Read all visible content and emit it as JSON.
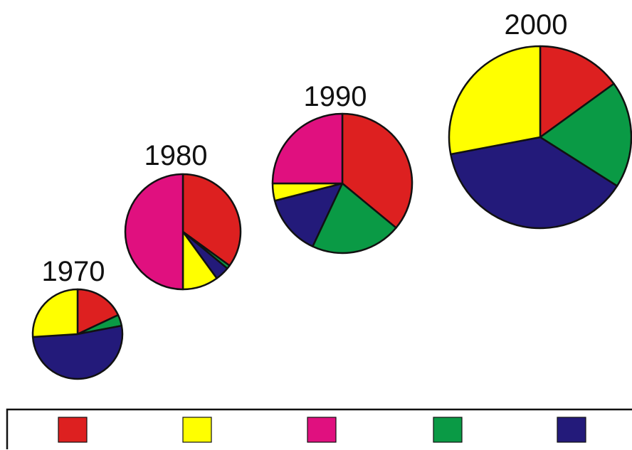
{
  "chart_data": {
    "type": "pie",
    "series_colors": [
      "#dd2020",
      "#ffff00",
      "#e0107f",
      "#0a9a45",
      "#231a7a"
    ],
    "pies": [
      {
        "label": "1970",
        "values": [
          18,
          0,
          0,
          4,
          52,
          26
        ],
        "colors": [
          "#dd2020",
          "#ffffff",
          "#e0107f",
          "#0a9a45",
          "#231a7a",
          "#ffff00"
        ],
        "slice_order": [
          "red",
          "(none)",
          "magenta",
          "green",
          "navy",
          "yellow"
        ]
      },
      {
        "label": "1980",
        "values": [
          35,
          1,
          4,
          10,
          50
        ],
        "slice_order": [
          "red",
          "green",
          "navy",
          "yellow",
          "magenta"
        ]
      },
      {
        "label": "1990",
        "values": [
          36,
          21,
          14,
          4,
          25
        ],
        "slice_order": [
          "red",
          "green",
          "navy",
          "yellow",
          "magenta"
        ]
      },
      {
        "label": "2000",
        "values": [
          15,
          19,
          38,
          28
        ],
        "slice_order": [
          "red",
          "green",
          "navy",
          "yellow"
        ]
      }
    ],
    "relative_sizes": [
      1,
      1.29,
      1.56,
      2.04
    ],
    "legend": {
      "placement": "bottom",
      "entries": [
        "",
        "",
        "",
        "",
        ""
      ]
    }
  }
}
